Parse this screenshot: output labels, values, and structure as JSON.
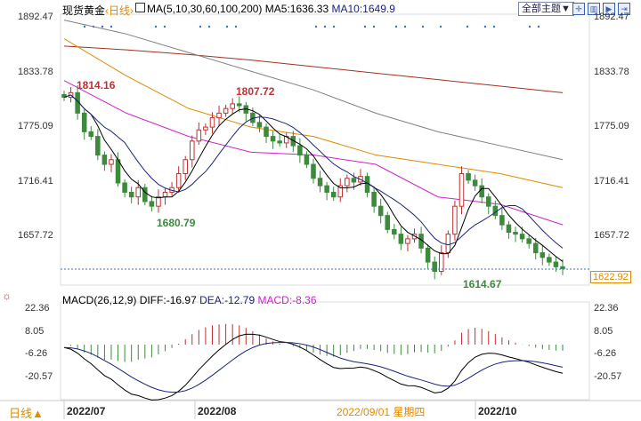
{
  "header": {
    "symbol": "现货黄金",
    "period": "日线",
    "indicator": "MA(5,10,30,60,100,200)",
    "ma5": "MA5:1636.33",
    "ma10": "MA10:1649.9",
    "theme_button": "全部主题▼",
    "icons": [
      "crosshair-icon",
      "chart-icon",
      "play-icon",
      "exit-icon"
    ]
  },
  "macd_header": {
    "label": "MACD(26,12,9)",
    "diff": "DIFF:-16.97",
    "dea": "DEA:-12.79",
    "macd": "MACD:-8.36"
  },
  "footer": {
    "period_button": "日线▲",
    "cursor_date": "2022/09/01 星期四"
  },
  "colors": {
    "up": "#c03030",
    "down": "#3d8a3d",
    "ma5": "#000000",
    "ma10": "#1a237e",
    "ma30": "#d020d0",
    "ma60": "#e08a00",
    "ma100": "#808080",
    "ma200": "#a03020",
    "accent": "#e08a00"
  },
  "chart_data": {
    "type": "candlestick",
    "price_ticks": [
      "1892.47",
      "1833.78",
      "1775.09",
      "1716.41",
      "1657.72"
    ],
    "price_range": [
      1622.92,
      1892.47
    ],
    "last_price": "1622.92",
    "macd_ticks": [
      "22.36",
      "8.05",
      "-6.26",
      "-20.57"
    ],
    "x_ticks": [
      "2022/07",
      "2022/08",
      "2022/10"
    ],
    "annotations": [
      {
        "text": "1814.16",
        "type": "high"
      },
      {
        "text": "1807.72",
        "type": "high"
      },
      {
        "text": "1680.79",
        "type": "low"
      },
      {
        "text": "1614.67",
        "type": "low"
      }
    ],
    "closes": [
      1807,
      1812,
      1790,
      1770,
      1765,
      1745,
      1735,
      1740,
      1715,
      1705,
      1700,
      1710,
      1695,
      1690,
      1700,
      1705,
      1710,
      1725,
      1740,
      1760,
      1772,
      1775,
      1785,
      1790,
      1795,
      1800,
      1798,
      1790,
      1780,
      1775,
      1765,
      1760,
      1758,
      1765,
      1755,
      1745,
      1735,
      1720,
      1712,
      1705,
      1700,
      1712,
      1720,
      1716,
      1722,
      1705,
      1690,
      1680,
      1665,
      1660,
      1650,
      1655,
      1660,
      1645,
      1630,
      1620,
      1640,
      1660,
      1690,
      1725,
      1718,
      1712,
      1700,
      1690,
      1680,
      1670,
      1662,
      1660,
      1655,
      1650,
      1640,
      1635,
      1630,
      1625,
      1623
    ],
    "long_ma": {
      "ma30": [
        1825,
        1790,
        1765,
        1748,
        1745,
        1735,
        1700,
        1692,
        1670
      ],
      "ma60": [
        1870,
        1830,
        1795,
        1775,
        1765,
        1745,
        1735,
        1725,
        1710
      ],
      "ma100": [
        1890,
        1875,
        1855,
        1835,
        1815,
        1790,
        1770,
        1755,
        1740
      ],
      "ma200": [
        1862,
        1858,
        1853,
        1847,
        1840,
        1833,
        1826,
        1819,
        1812
      ]
    }
  }
}
